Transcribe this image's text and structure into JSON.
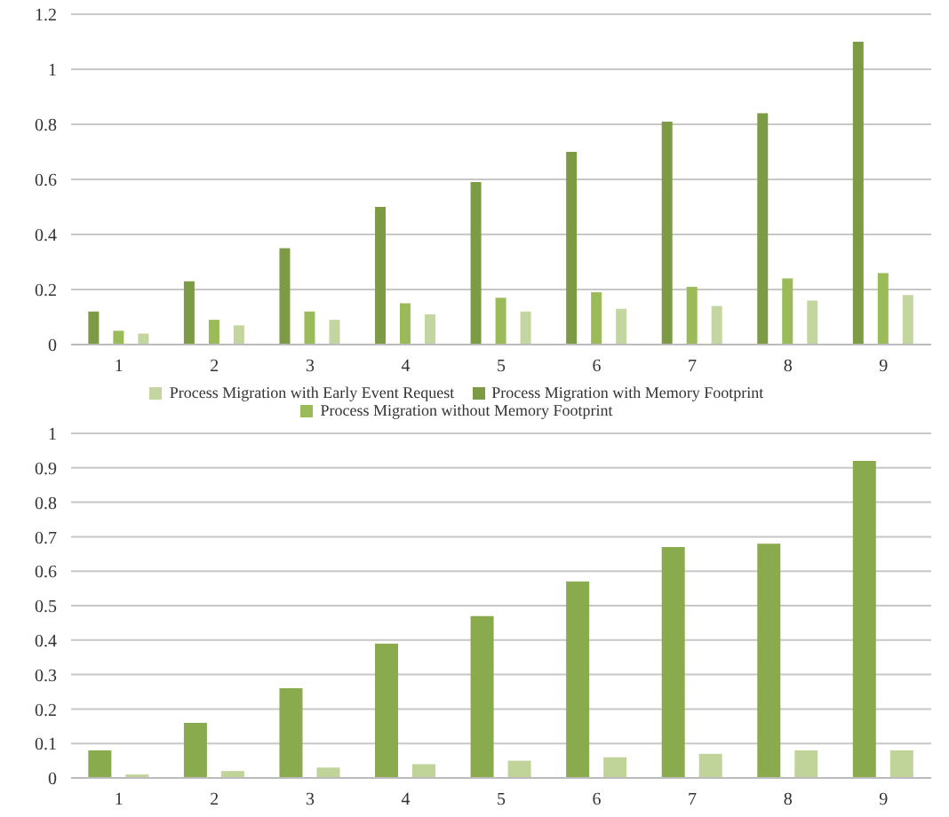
{
  "chart_data": [
    {
      "type": "bar",
      "categories": [
        "1",
        "2",
        "3",
        "4",
        "5",
        "6",
        "7",
        "8",
        "9"
      ],
      "series": [
        {
          "name": "Process Migration with Memory Footprint",
          "color": "#7d9b45",
          "values": [
            0.12,
            0.23,
            0.35,
            0.5,
            0.59,
            0.7,
            0.81,
            0.84,
            1.1
          ]
        },
        {
          "name": "Process Migration without Memory Footprint",
          "color": "#9bbb59",
          "values": [
            0.05,
            0.09,
            0.12,
            0.15,
            0.17,
            0.19,
            0.21,
            0.24,
            0.26
          ]
        },
        {
          "name": "Process Migration with Early Event Request",
          "color": "#c4d6a0",
          "values": [
            0.04,
            0.07,
            0.09,
            0.11,
            0.12,
            0.13,
            0.14,
            0.16,
            0.18
          ]
        }
      ],
      "ylim": [
        0,
        1.2
      ],
      "yticks": [
        0,
        0.2,
        0.4,
        0.6,
        0.8,
        1,
        1.2
      ],
      "grid": "y",
      "legend": "bottom"
    },
    {
      "type": "bar",
      "categories": [
        "1",
        "2",
        "3",
        "4",
        "5",
        "6",
        "7",
        "8",
        "9"
      ],
      "series": [
        {
          "color": "#8aaa4e",
          "values": [
            0.08,
            0.16,
            0.26,
            0.39,
            0.47,
            0.57,
            0.67,
            0.68,
            0.92
          ]
        },
        {
          "color": "#c0d49a",
          "values": [
            0.01,
            0.02,
            0.03,
            0.04,
            0.05,
            0.06,
            0.07,
            0.08,
            0.08
          ]
        }
      ],
      "ylim": [
        0,
        1
      ],
      "yticks": [
        0,
        0.1,
        0.2,
        0.3,
        0.4,
        0.5,
        0.6,
        0.7,
        0.8,
        0.9,
        1
      ],
      "grid": "y"
    }
  ]
}
